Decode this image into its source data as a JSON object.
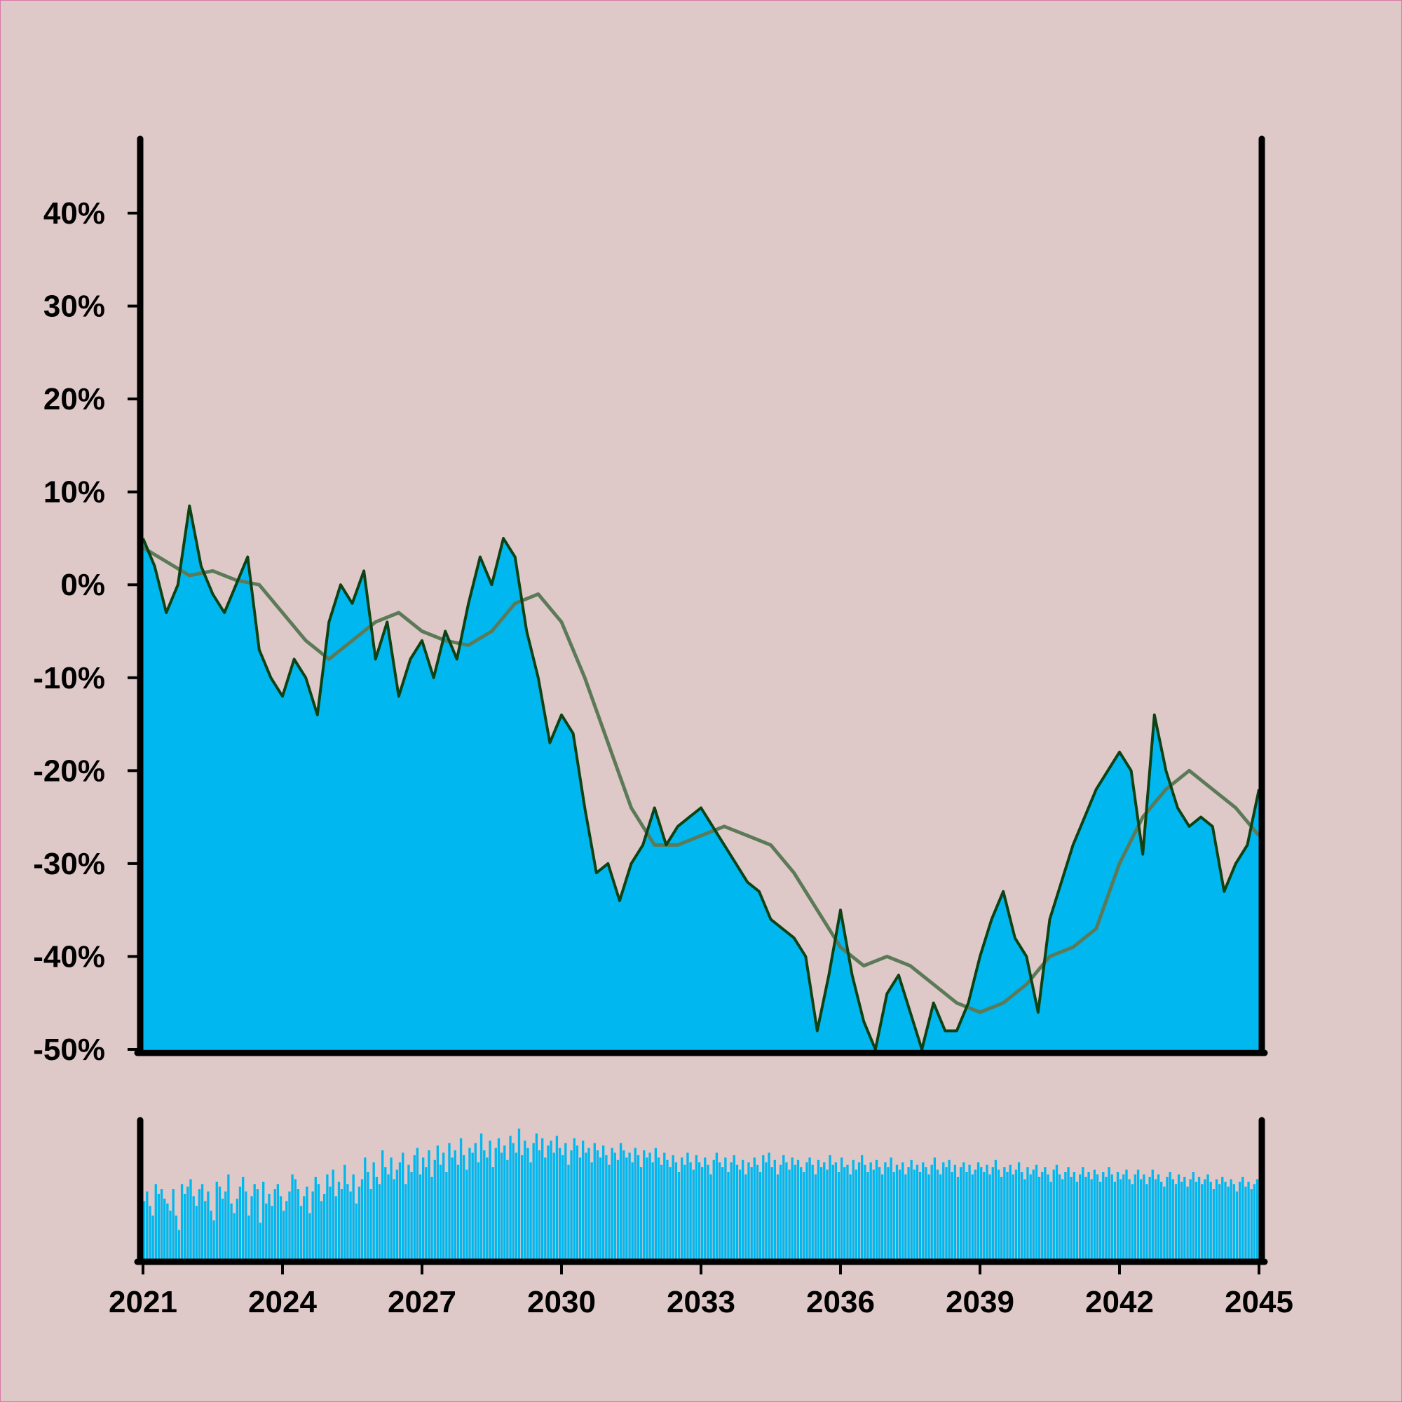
{
  "chart_data": {
    "type": "area",
    "colors": {
      "background": "#dfc8c8",
      "border": "#d67aa8",
      "area_fill": "#00b8ef",
      "price_line": "#0d4214",
      "moving_average_line": "#5c7a58",
      "volume_bars": "#00b8ef",
      "axes": "#000000"
    },
    "y_axis": {
      "range": [
        -50,
        48
      ],
      "ticks": [
        40,
        30,
        20,
        10,
        0,
        -10,
        -20,
        -30,
        -40,
        -50
      ],
      "tick_labels": [
        "40%",
        "30%",
        "20%",
        "10%",
        "0%",
        "-10%",
        "-20%",
        "-30%",
        "-40%",
        "-50%"
      ]
    },
    "x_axis": {
      "range": [
        2021,
        2045
      ],
      "ticks": [
        2021,
        2024,
        2027,
        2030,
        2033,
        2036,
        2039,
        2042,
        2045
      ],
      "tick_labels": [
        "2021",
        "2024",
        "2027",
        "2030",
        "2033",
        "2036",
        "2039",
        "2042",
        "2045"
      ]
    },
    "grid": false,
    "legend": "none",
    "series": [
      {
        "role": "price",
        "x": [
          2021.0,
          2021.25,
          2021.5,
          2021.75,
          2022.0,
          2022.25,
          2022.5,
          2022.75,
          2023.0,
          2023.25,
          2023.5,
          2023.75,
          2024.0,
          2024.25,
          2024.5,
          2024.75,
          2025.0,
          2025.25,
          2025.5,
          2025.75,
          2026.0,
          2026.25,
          2026.5,
          2026.75,
          2027.0,
          2027.25,
          2027.5,
          2027.75,
          2028.0,
          2028.25,
          2028.5,
          2028.75,
          2029.0,
          2029.25,
          2029.5,
          2029.75,
          2030.0,
          2030.25,
          2030.5,
          2030.75,
          2031.0,
          2031.25,
          2031.5,
          2031.75,
          2032.0,
          2032.25,
          2032.5,
          2032.75,
          2033.0,
          2033.25,
          2033.5,
          2033.75,
          2034.0,
          2034.25,
          2034.5,
          2034.75,
          2035.0,
          2035.25,
          2035.5,
          2035.75,
          2036.0,
          2036.25,
          2036.5,
          2036.75,
          2037.0,
          2037.25,
          2037.5,
          2037.75,
          2038.0,
          2038.25,
          2038.5,
          2038.75,
          2039.0,
          2039.25,
          2039.5,
          2039.75,
          2040.0,
          2040.25,
          2040.5,
          2040.75,
          2041.0,
          2041.25,
          2041.5,
          2041.75,
          2042.0,
          2042.25,
          2042.5,
          2042.75,
          2043.0,
          2043.25,
          2043.5,
          2043.75,
          2044.0,
          2044.25,
          2044.5,
          2044.75,
          2045.0
        ],
        "values": [
          5,
          2,
          -3,
          0,
          8.5,
          2,
          -1,
          -3,
          0,
          3,
          -7,
          -10,
          -12,
          -8,
          -10,
          -14,
          -4,
          0,
          -2,
          1.5,
          -8,
          -4,
          -12,
          -8,
          -6,
          -10,
          -5,
          -8,
          -2,
          3,
          0,
          5,
          3,
          -5,
          -10,
          -17,
          -14,
          -16,
          -24,
          -31,
          -30,
          -34,
          -30,
          -28,
          -24,
          -28,
          -26,
          -25,
          -24,
          -26,
          -28,
          -30,
          -32,
          -33,
          -36,
          -37,
          -38,
          -40,
          -48,
          -42,
          -35,
          -42,
          -47,
          -52,
          -44,
          -42,
          -46,
          -51,
          -45,
          -48,
          -48,
          -45,
          -40,
          -36,
          -33,
          -38,
          -40,
          -46,
          -36,
          -32,
          -28,
          -25,
          -22,
          -20,
          -18,
          -20,
          -29,
          -14,
          -20,
          -24,
          -26,
          -25,
          -26,
          -33,
          -30,
          -28,
          -22
        ]
      },
      {
        "role": "moving_average",
        "x": [
          2021.0,
          2021.5,
          2022.0,
          2022.5,
          2023.0,
          2023.5,
          2024.0,
          2024.5,
          2025.0,
          2025.5,
          2026.0,
          2026.5,
          2027.0,
          2027.5,
          2028.0,
          2028.5,
          2029.0,
          2029.5,
          2030.0,
          2030.5,
          2031.0,
          2031.5,
          2032.0,
          2032.5,
          2033.0,
          2033.5,
          2034.0,
          2034.5,
          2035.0,
          2035.5,
          2036.0,
          2036.5,
          2037.0,
          2037.5,
          2038.0,
          2038.5,
          2039.0,
          2039.5,
          2040.0,
          2040.5,
          2041.0,
          2041.5,
          2042.0,
          2042.5,
          2043.0,
          2043.5,
          2044.0,
          2044.5,
          2045.0
        ],
        "values": [
          4,
          2.5,
          1,
          1.5,
          0.5,
          0,
          -3,
          -6,
          -8,
          -6,
          -4,
          -3,
          -5,
          -6,
          -6.5,
          -5,
          -2,
          -1,
          -4,
          -10,
          -17,
          -24,
          -28,
          -28,
          -27,
          -26,
          -27,
          -28,
          -31,
          -35,
          -39,
          -41,
          -40,
          -41,
          -43,
          -45,
          -46,
          -45,
          -43,
          -40,
          -39,
          -37,
          -30,
          -25,
          -22,
          -20,
          -22,
          -24,
          -27
        ]
      }
    ],
    "volume": {
      "x_start": 2021.0,
      "x_step": 0.0625,
      "values": [
        48,
        56,
        44,
        36,
        62,
        54,
        58,
        50,
        46,
        40,
        58,
        36,
        24,
        62,
        54,
        60,
        66,
        52,
        44,
        58,
        62,
        48,
        56,
        40,
        32,
        64,
        60,
        50,
        56,
        70,
        46,
        38,
        50,
        60,
        68,
        56,
        36,
        52,
        62,
        58,
        30,
        64,
        46,
        54,
        44,
        58,
        62,
        52,
        40,
        48,
        56,
        70,
        66,
        58,
        44,
        52,
        60,
        38,
        56,
        68,
        62,
        48,
        54,
        70,
        60,
        74,
        52,
        64,
        58,
        78,
        62,
        56,
        70,
        46,
        60,
        66,
        84,
        72,
        58,
        80,
        68,
        62,
        90,
        76,
        70,
        84,
        66,
        74,
        80,
        88,
        62,
        78,
        72,
        86,
        92,
        70,
        84,
        76,
        90,
        68,
        82,
        94,
        78,
        88,
        72,
        96,
        84,
        90,
        78,
        100,
        86,
        74,
        92,
        88,
        96,
        80,
        104,
        90,
        84,
        98,
        76,
        92,
        100,
        88,
        94,
        82,
        102,
        96,
        88,
        108,
        86,
        98,
        92,
        80,
        96,
        104,
        90,
        100,
        84,
        94,
        98,
        88,
        102,
        92,
        86,
        96,
        78,
        90,
        100,
        94,
        84,
        98,
        88,
        92,
        80,
        96,
        90,
        84,
        94,
        86,
        78,
        92,
        88,
        82,
        96,
        90,
        84,
        88,
        80,
        92,
        86,
        76,
        90,
        84,
        88,
        80,
        92,
        84,
        78,
        88,
        82,
        76,
        86,
        80,
        72,
        84,
        78,
        88,
        80,
        74,
        86,
        80,
        76,
        84,
        78,
        70,
        82,
        88,
        80,
        76,
        84,
        72,
        80,
        86,
        78,
        74,
        82,
        70,
        80,
        76,
        84,
        78,
        72,
        86,
        80,
        88,
        76,
        82,
        70,
        78,
        86,
        80,
        74,
        84,
        78,
        82,
        76,
        72,
        80,
        84,
        78,
        70,
        82,
        76,
        80,
        74,
        86,
        78,
        80,
        72,
        84,
        76,
        78,
        70,
        82,
        74,
        80,
        86,
        78,
        72,
        80,
        74,
        82,
        76,
        70,
        80,
        76,
        84,
        72,
        78,
        74,
        80,
        70,
        76,
        82,
        74,
        78,
        72,
        80,
        76,
        70,
        78,
        84,
        74,
        70,
        80,
        76,
        82,
        72,
        78,
        68,
        76,
        80,
        72,
        78,
        70,
        74,
        80,
        76,
        72,
        78,
        70,
        76,
        82,
        74,
        68,
        76,
        72,
        78,
        70,
        74,
        80,
        72,
        66,
        76,
        70,
        74,
        78,
        68,
        72,
        76,
        70,
        64,
        74,
        78,
        70,
        66,
        72,
        76,
        68,
        72,
        64,
        70,
        76,
        68,
        72,
        66,
        74,
        70,
        64,
        72,
        68,
        76,
        70,
        64,
        72,
        66,
        70,
        74,
        66,
        62,
        70,
        74,
        66,
        70,
        62,
        68,
        74,
        66,
        70,
        64,
        60,
        68,
        72,
        66,
        62,
        70,
        64,
        68,
        60,
        66,
        72,
        64,
        68,
        62,
        66,
        70,
        64,
        58,
        66,
        62,
        68,
        64,
        60,
        66,
        62,
        56,
        64,
        68,
        60,
        64,
        58,
        62,
        66,
        60,
        56,
        64,
        60
      ]
    }
  }
}
